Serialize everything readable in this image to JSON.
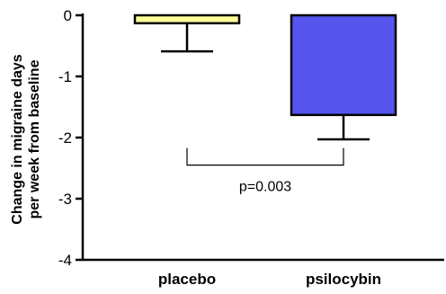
{
  "chart_data": {
    "type": "bar",
    "categories": [
      "placebo",
      "psilocybin"
    ],
    "values": [
      -0.13,
      -1.63
    ],
    "error_low": [
      -0.59,
      -2.03
    ],
    "colors": [
      "#ffff99",
      "#5555ee"
    ],
    "ylabel_line1": "Change in migraine days",
    "ylabel_line2": "per week from baseline",
    "ylim": [
      -4,
      0
    ],
    "yticks": [
      0,
      -1,
      -2,
      -3,
      -4
    ],
    "ytick_labels": [
      "0",
      "-1",
      "-2",
      "-3",
      "-4"
    ],
    "grid": false,
    "annotation": {
      "text": "p=0.003",
      "from_category": 0,
      "to_category": 1,
      "y": -2.45
    }
  }
}
